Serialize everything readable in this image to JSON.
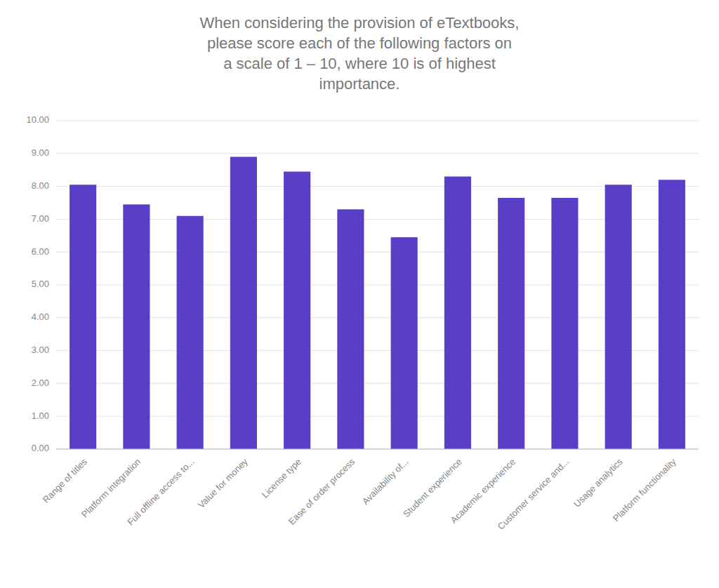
{
  "chart_data": {
    "type": "bar",
    "title": "When considering the provision of eTextbooks,\nplease score each of the following factors on\na scale of 1 – 10, where 10 is of highest\nimportance.",
    "categories": [
      "Range of titles",
      "Platform integration",
      "Full offline access to...",
      "Value for money",
      "License type",
      "Ease of order process",
      "Availability of...",
      "Student experience",
      "Academic experience",
      "Customer service and...",
      "Usage analytics",
      "Platform functionality"
    ],
    "values": [
      8.05,
      7.45,
      7.1,
      8.9,
      8.45,
      7.3,
      6.45,
      8.3,
      7.65,
      7.65,
      8.05,
      8.2
    ],
    "color": "#5B3EC8",
    "ylim": [
      0,
      10
    ],
    "yticks": [
      {
        "value": 0,
        "label": "0.00"
      },
      {
        "value": 1,
        "label": "1.00"
      },
      {
        "value": 2,
        "label": "2.00"
      },
      {
        "value": 3,
        "label": "3.00"
      },
      {
        "value": 4,
        "label": "4.00"
      },
      {
        "value": 5,
        "label": "5.00"
      },
      {
        "value": 6,
        "label": "6.00"
      },
      {
        "value": 7,
        "label": "7.00"
      },
      {
        "value": 8,
        "label": "8.00"
      },
      {
        "value": 9,
        "label": "9.00"
      },
      {
        "value": 10,
        "label": "10.00"
      }
    ],
    "grid": true
  }
}
